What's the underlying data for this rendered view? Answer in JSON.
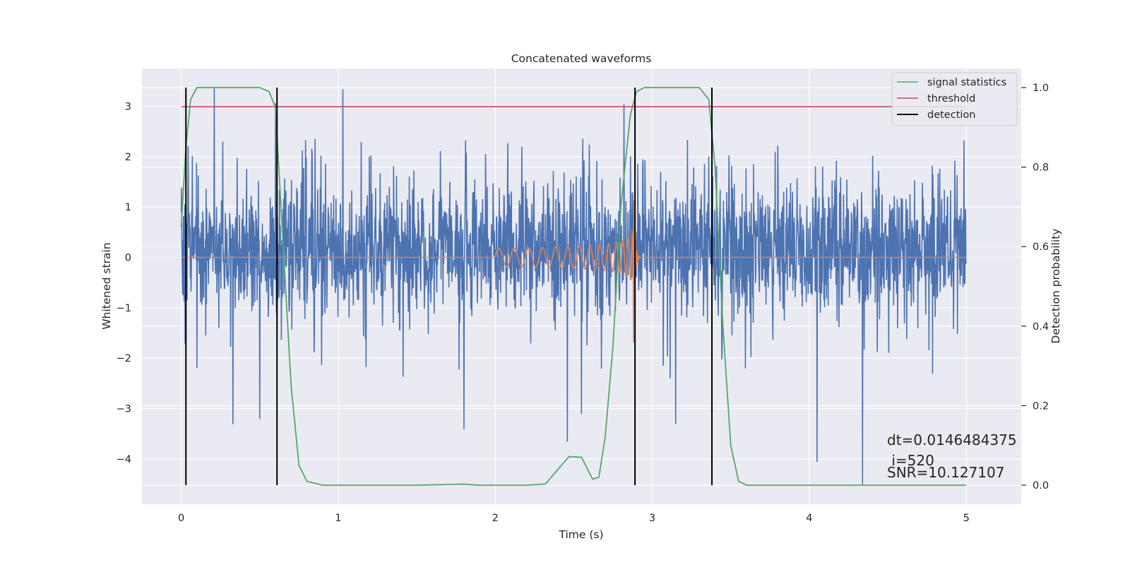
{
  "chart_data": {
    "type": "line",
    "title": "Concatenated waveforms",
    "xlabel": "Time (s)",
    "ylabel": "Whitened strain",
    "y2label": "Detection probability",
    "xlim": [
      -0.25,
      5.35
    ],
    "ylim": [
      -4.9,
      3.75
    ],
    "y2lim": [
      -0.048,
      1.048
    ],
    "xticks": [
      0,
      1,
      2,
      3,
      4,
      5
    ],
    "xtick_labels": [
      "0",
      "1",
      "2",
      "3",
      "4",
      "5"
    ],
    "yticks": [
      3,
      2,
      1,
      0,
      -1,
      -2,
      -3,
      -4
    ],
    "ytick_labels": [
      "3",
      "2",
      "1",
      "0",
      "−1",
      "−2",
      "−3",
      "−4"
    ],
    "y2ticks": [
      1.0,
      0.8,
      0.6,
      0.4,
      0.2,
      0.0
    ],
    "y2tick_labels": [
      "1.0",
      "0.8",
      "0.6",
      "0.4",
      "0.2",
      "0.0"
    ],
    "grid": true,
    "legend_position": "top-right",
    "colors": {
      "background": "#eaeaf2",
      "grid": "#ffffff",
      "noise": "#4c72b0",
      "waveform": "#dd8452",
      "signal_statistics": "#55a868",
      "threshold": "#c44e52",
      "detection": "#000000"
    },
    "series": [
      {
        "name": "signal statistics",
        "axis": "right",
        "x": [
          0.0,
          0.03,
          0.06,
          0.1,
          0.5,
          0.56,
          0.6,
          0.65,
          0.7,
          0.75,
          0.8,
          0.9,
          1.5,
          1.8,
          1.9,
          2.2,
          2.32,
          2.4,
          2.47,
          2.55,
          2.62,
          2.66,
          2.7,
          2.75,
          2.8,
          2.86,
          2.9,
          2.95,
          3.3,
          3.36,
          3.4,
          3.45,
          3.5,
          3.55,
          3.6,
          3.8,
          5.0
        ],
        "y": [
          0.65,
          0.85,
          0.97,
          1.0,
          1.0,
          0.99,
          0.95,
          0.6,
          0.25,
          0.05,
          0.01,
          0.0,
          0.0,
          0.0025,
          0.0,
          0.0,
          0.003,
          0.04,
          0.072,
          0.07,
          0.015,
          0.02,
          0.12,
          0.35,
          0.7,
          0.93,
          0.99,
          1.0,
          1.0,
          0.97,
          0.8,
          0.4,
          0.1,
          0.01,
          0.0,
          0.0,
          0.0
        ]
      },
      {
        "name": "threshold",
        "axis": "right",
        "x": [
          0.0,
          5.0
        ],
        "y": [
          0.952,
          0.952
        ]
      },
      {
        "name": "detection",
        "axis": "right",
        "x": [
          0.03,
          0.61,
          2.89,
          3.38
        ],
        "y_range": [
          0.0,
          1.0
        ]
      }
    ],
    "noise_trace": {
      "axis": "left",
      "x_range": [
        0.0,
        5.0
      ],
      "typical_range": [
        -1.7,
        2.2
      ],
      "spikes": [
        {
          "x": 0.21,
          "y": 3.35
        },
        {
          "x": 1.03,
          "y": 3.33
        },
        {
          "x": 0.6,
          "y": 3.05
        },
        {
          "x": 2.82,
          "y": 3.03
        },
        {
          "x": 4.34,
          "y": -4.5
        },
        {
          "x": 4.05,
          "y": -4.05
        },
        {
          "x": 2.46,
          "y": -3.65
        },
        {
          "x": 0.33,
          "y": -3.3
        },
        {
          "x": 0.5,
          "y": -3.2
        },
        {
          "x": 1.8,
          "y": -3.4
        },
        {
          "x": 3.15,
          "y": -3.3
        },
        {
          "x": 2.55,
          "y": -3.1
        }
      ]
    },
    "waveform_trace": {
      "axis": "left",
      "start": 2.0,
      "merger": 2.88,
      "ringdown_end": 2.92,
      "start_amplitude": 0.18,
      "peak_amplitude": 1.95
    },
    "annotations": [
      "dt=0.0146484375",
      " i=520",
      "SNR=10.127107"
    ]
  }
}
